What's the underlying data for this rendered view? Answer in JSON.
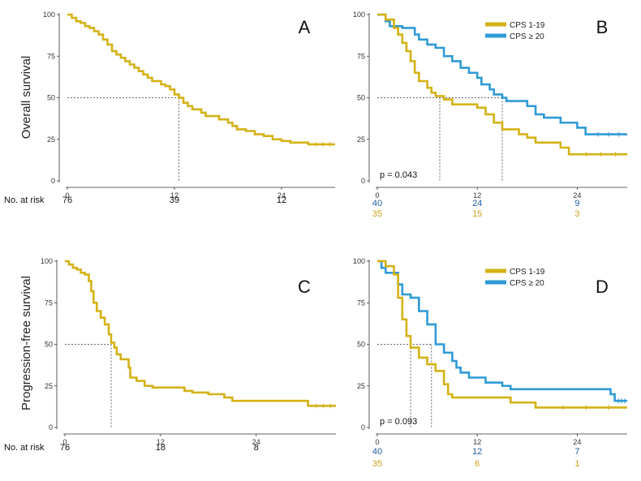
{
  "colors": {
    "yellow": "#d4b216",
    "blue": "#2f9ad6",
    "risk_blue": "#1f5f9f",
    "risk_yellow": "#c9a21a"
  },
  "row_labels": {
    "top": "Overall survival",
    "bottom": "Progression-free survival"
  },
  "risk_label": "No. at risk",
  "chart_data": [
    {
      "panel": "A",
      "type": "line",
      "xlim": [
        0,
        30
      ],
      "ylim": [
        0,
        100
      ],
      "x_ticks": [
        0,
        12,
        24
      ],
      "y_ticks": [
        0,
        25,
        50,
        75,
        100
      ],
      "median_lines": [
        12.5
      ],
      "risk_table": [
        {
          "numbers": [
            "76",
            "39",
            "12"
          ]
        }
      ],
      "series": [
        {
          "name": "",
          "color_key": "yellow",
          "points": [
            [
              0,
              100
            ],
            [
              0.5,
              98
            ],
            [
              1,
              96
            ],
            [
              1.5,
              95
            ],
            [
              2,
              93
            ],
            [
              2.5,
              92
            ],
            [
              3,
              90
            ],
            [
              3.5,
              88
            ],
            [
              4,
              85
            ],
            [
              4.5,
              82
            ],
            [
              5,
              78
            ],
            [
              5.5,
              76
            ],
            [
              6,
              74
            ],
            [
              6.5,
              72
            ],
            [
              7,
              70
            ],
            [
              7.5,
              68
            ],
            [
              8,
              66
            ],
            [
              8.5,
              64
            ],
            [
              9,
              62
            ],
            [
              9.5,
              60
            ],
            [
              10.5,
              58
            ],
            [
              11,
              57
            ],
            [
              11.5,
              55
            ],
            [
              12,
              52
            ],
            [
              12.5,
              50
            ],
            [
              13,
              47
            ],
            [
              13.5,
              45
            ],
            [
              14,
              43
            ],
            [
              15,
              41
            ],
            [
              15.5,
              39
            ],
            [
              17,
              37
            ],
            [
              18,
              35
            ],
            [
              18.5,
              33
            ],
            [
              19,
              31
            ],
            [
              20,
              30
            ],
            [
              21,
              28
            ],
            [
              22,
              27
            ],
            [
              23,
              25
            ],
            [
              24,
              24
            ],
            [
              25,
              23
            ],
            [
              27,
              22
            ],
            [
              30,
              22
            ]
          ]
        }
      ]
    },
    {
      "panel": "B",
      "type": "line",
      "xlim": [
        0,
        30
      ],
      "ylim": [
        0,
        100
      ],
      "x_ticks": [
        0,
        12,
        24
      ],
      "y_ticks": [
        0,
        25,
        50,
        75,
        100
      ],
      "median_lines": [
        7.5,
        15
      ],
      "p_value": "p = 0.043",
      "legend": [
        "CPS 1-19",
        "CPS ≥ 20"
      ],
      "risk_table": [
        {
          "color_key": "risk_blue",
          "numbers": [
            "40",
            "24",
            "9"
          ]
        },
        {
          "color_key": "risk_yellow",
          "numbers": [
            "35",
            "15",
            "3"
          ]
        }
      ],
      "series": [
        {
          "name": "CPS 1-19",
          "color_key": "yellow",
          "points": [
            [
              0,
              100
            ],
            [
              1,
              97
            ],
            [
              2,
              92
            ],
            [
              2.5,
              88
            ],
            [
              3,
              83
            ],
            [
              3.5,
              78
            ],
            [
              4,
              72
            ],
            [
              4.5,
              65
            ],
            [
              5,
              60
            ],
            [
              6,
              56
            ],
            [
              6.5,
              53
            ],
            [
              7,
              51
            ],
            [
              8,
              49
            ],
            [
              9,
              46
            ],
            [
              12,
              44
            ],
            [
              13,
              40
            ],
            [
              14,
              35
            ],
            [
              15,
              31
            ],
            [
              17,
              28
            ],
            [
              18,
              26
            ],
            [
              19,
              23
            ],
            [
              22,
              20
            ],
            [
              23,
              16
            ],
            [
              30,
              16
            ]
          ]
        },
        {
          "name": "CPS ≥ 20",
          "color_key": "blue",
          "points": [
            [
              0,
              100
            ],
            [
              1,
              96
            ],
            [
              1.5,
              93
            ],
            [
              3,
              92
            ],
            [
              4.5,
              88
            ],
            [
              5,
              85
            ],
            [
              6,
              82
            ],
            [
              7,
              80
            ],
            [
              8,
              75
            ],
            [
              9,
              72
            ],
            [
              10,
              68
            ],
            [
              11,
              65
            ],
            [
              12,
              62
            ],
            [
              12.5,
              58
            ],
            [
              13.5,
              55
            ],
            [
              14,
              52
            ],
            [
              15,
              50
            ],
            [
              15.5,
              48
            ],
            [
              18,
              45
            ],
            [
              19,
              40
            ],
            [
              20,
              38
            ],
            [
              22,
              35
            ],
            [
              24,
              32
            ],
            [
              25,
              28
            ],
            [
              30,
              28
            ]
          ]
        }
      ]
    },
    {
      "panel": "C",
      "type": "line",
      "xlim": [
        0,
        34
      ],
      "ylim": [
        0,
        100
      ],
      "x_ticks": [
        0,
        12,
        24
      ],
      "y_ticks": [
        0,
        25,
        50,
        75,
        100
      ],
      "median_lines": [
        5.8
      ],
      "risk_table": [
        {
          "numbers": [
            "76",
            "18",
            "8"
          ]
        }
      ],
      "series": [
        {
          "name": "",
          "color_key": "yellow",
          "points": [
            [
              0,
              100
            ],
            [
              0.5,
              98
            ],
            [
              1,
              96
            ],
            [
              1.5,
              95
            ],
            [
              2,
              93
            ],
            [
              2.5,
              92
            ],
            [
              3,
              88
            ],
            [
              3.3,
              82
            ],
            [
              3.6,
              75
            ],
            [
              4,
              70
            ],
            [
              4.5,
              66
            ],
            [
              5,
              62
            ],
            [
              5.5,
              56
            ],
            [
              5.8,
              51
            ],
            [
              6.2,
              48
            ],
            [
              6.5,
              44
            ],
            [
              7,
              41
            ],
            [
              8,
              36
            ],
            [
              8.2,
              30
            ],
            [
              9,
              28
            ],
            [
              10,
              25
            ],
            [
              11,
              24
            ],
            [
              15,
              22
            ],
            [
              16,
              21
            ],
            [
              18,
              20
            ],
            [
              20,
              18
            ],
            [
              21,
              16
            ],
            [
              30,
              16
            ],
            [
              30.5,
              13
            ],
            [
              34,
              13
            ]
          ]
        }
      ]
    },
    {
      "panel": "D",
      "type": "line",
      "xlim": [
        0,
        30
      ],
      "ylim": [
        0,
        100
      ],
      "x_ticks": [
        0,
        12,
        24
      ],
      "y_ticks": [
        0,
        25,
        50,
        75,
        100
      ],
      "median_lines": [
        4,
        6.5
      ],
      "p_value": "p = 0.093",
      "legend": [
        "CPS 1-19",
        "CPS ≥ 20"
      ],
      "risk_table": [
        {
          "color_key": "risk_blue",
          "numbers": [
            "40",
            "12",
            "7"
          ]
        },
        {
          "color_key": "risk_yellow",
          "numbers": [
            "35",
            "6",
            "1"
          ]
        }
      ],
      "series": [
        {
          "name": "CPS 1-19",
          "color_key": "yellow",
          "points": [
            [
              0,
              100
            ],
            [
              1,
              97
            ],
            [
              2,
              92
            ],
            [
              2.5,
              78
            ],
            [
              3,
              65
            ],
            [
              3.5,
              55
            ],
            [
              4,
              48
            ],
            [
              5,
              42
            ],
            [
              6,
              38
            ],
            [
              7,
              34
            ],
            [
              8,
              26
            ],
            [
              8.5,
              20
            ],
            [
              9,
              18
            ],
            [
              16,
              15
            ],
            [
              19,
              12
            ],
            [
              30,
              12
            ]
          ]
        },
        {
          "name": "CPS ≥ 20",
          "color_key": "blue",
          "points": [
            [
              0,
              100
            ],
            [
              0.5,
              96
            ],
            [
              1,
              93
            ],
            [
              2.5,
              86
            ],
            [
              3,
              80
            ],
            [
              4,
              78
            ],
            [
              5,
              70
            ],
            [
              6,
              62
            ],
            [
              7,
              50
            ],
            [
              8,
              45
            ],
            [
              9,
              40
            ],
            [
              9.5,
              36
            ],
            [
              10,
              33
            ],
            [
              11,
              30
            ],
            [
              13,
              27
            ],
            [
              15,
              25
            ],
            [
              16,
              23
            ],
            [
              28,
              20
            ],
            [
              28.5,
              16
            ],
            [
              30,
              16
            ]
          ]
        }
      ]
    }
  ]
}
